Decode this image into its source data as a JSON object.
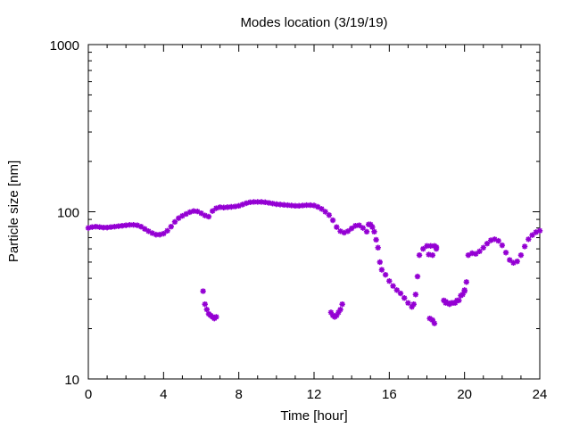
{
  "chart_data": {
    "type": "scatter",
    "title": "Modes location (3/19/19)",
    "xlabel": "Time [hour]",
    "ylabel": "Particle size [nm]",
    "xlim": [
      0,
      24
    ],
    "ylim": [
      10,
      1000
    ],
    "yscale": "log",
    "x_ticks": [
      0,
      4,
      8,
      12,
      16,
      20,
      24
    ],
    "y_ticks": [
      10,
      100,
      1000
    ],
    "grid": false,
    "legend": "none",
    "marker": "asterisk",
    "colors": {
      "series": "#9400d3",
      "axes": "#000000"
    },
    "series": [
      {
        "points": [
          [
            0.0,
            80
          ],
          [
            0.2,
            81
          ],
          [
            0.4,
            81.5
          ],
          [
            0.6,
            81
          ],
          [
            0.8,
            80.5
          ],
          [
            1.0,
            80.5
          ],
          [
            1.2,
            81
          ],
          [
            1.4,
            81.5
          ],
          [
            1.6,
            82
          ],
          [
            1.8,
            82.5
          ],
          [
            2.0,
            83
          ],
          [
            2.2,
            83.5
          ],
          [
            2.4,
            83.5
          ],
          [
            2.6,
            83
          ],
          [
            2.8,
            81.5
          ],
          [
            3.0,
            79
          ],
          [
            3.2,
            76.5
          ],
          [
            3.4,
            74.5
          ],
          [
            3.6,
            73
          ],
          [
            3.8,
            73
          ],
          [
            4.0,
            74
          ],
          [
            4.2,
            77
          ],
          [
            4.4,
            81.5
          ],
          [
            4.6,
            87
          ],
          [
            4.8,
            91.5
          ],
          [
            5.0,
            94.5
          ],
          [
            5.2,
            97
          ],
          [
            5.4,
            99.5
          ],
          [
            5.6,
            101
          ],
          [
            5.8,
            100.5
          ],
          [
            6.0,
            98
          ],
          [
            6.2,
            95
          ],
          [
            6.4,
            93.5
          ],
          [
            6.6,
            101
          ],
          [
            6.8,
            105
          ],
          [
            7.0,
            106.5
          ],
          [
            7.2,
            106
          ],
          [
            7.4,
            106.5
          ],
          [
            7.6,
            107
          ],
          [
            7.8,
            107.5
          ],
          [
            8.0,
            108.5
          ],
          [
            8.2,
            110.5
          ],
          [
            8.4,
            112.5
          ],
          [
            8.6,
            114
          ],
          [
            8.8,
            114.5
          ],
          [
            9.0,
            114.5
          ],
          [
            9.2,
            114.5
          ],
          [
            9.4,
            114
          ],
          [
            9.6,
            113
          ],
          [
            9.8,
            112
          ],
          [
            10.0,
            111
          ],
          [
            10.2,
            110.5
          ],
          [
            10.4,
            110
          ],
          [
            10.6,
            109.5
          ],
          [
            10.8,
            109
          ],
          [
            11.0,
            108.5
          ],
          [
            11.2,
            108.5
          ],
          [
            11.4,
            109
          ],
          [
            11.6,
            109.5
          ],
          [
            11.8,
            109.5
          ],
          [
            12.0,
            109
          ],
          [
            12.2,
            107
          ],
          [
            12.4,
            104
          ],
          [
            12.6,
            100
          ],
          [
            12.8,
            95.5
          ],
          [
            13.0,
            89
          ],
          [
            13.2,
            81
          ],
          [
            13.4,
            76.5
          ],
          [
            13.6,
            75
          ],
          [
            13.8,
            76.5
          ],
          [
            14.0,
            79.5
          ],
          [
            14.2,
            82.5
          ],
          [
            14.4,
            83
          ],
          [
            14.6,
            80
          ],
          [
            14.8,
            76
          ],
          [
            14.9,
            84
          ],
          [
            15.0,
            84
          ],
          [
            15.1,
            81
          ],
          [
            15.2,
            76
          ],
          [
            15.3,
            68
          ],
          [
            15.4,
            61
          ],
          [
            15.5,
            50
          ],
          [
            15.6,
            45
          ],
          [
            15.8,
            42
          ],
          [
            16.0,
            38.5
          ],
          [
            16.2,
            36
          ],
          [
            16.4,
            34
          ],
          [
            16.6,
            32.5
          ],
          [
            16.8,
            30.5
          ],
          [
            17.0,
            28.5
          ],
          [
            17.2,
            27
          ],
          [
            17.3,
            28
          ],
          [
            17.4,
            32
          ],
          [
            17.5,
            41
          ],
          [
            17.6,
            55
          ],
          [
            17.8,
            60
          ],
          [
            18.0,
            62.5
          ],
          [
            18.2,
            62.5
          ],
          [
            18.4,
            62.5
          ],
          [
            18.5,
            61.5
          ],
          [
            18.1,
            55.5
          ],
          [
            18.3,
            55
          ],
          [
            19.0,
            28.5
          ],
          [
            19.2,
            28
          ],
          [
            19.4,
            28.5
          ],
          [
            19.6,
            29.5
          ],
          [
            19.8,
            31.5
          ],
          [
            20.0,
            34
          ],
          [
            20.1,
            38
          ],
          [
            20.2,
            55
          ],
          [
            20.4,
            56.5
          ],
          [
            20.6,
            56
          ],
          [
            20.8,
            58
          ],
          [
            21.0,
            61
          ],
          [
            21.2,
            64.5
          ],
          [
            21.4,
            67.5
          ],
          [
            21.6,
            68.5
          ],
          [
            21.8,
            67
          ],
          [
            22.0,
            63
          ],
          [
            22.2,
            57
          ],
          [
            22.4,
            51.5
          ],
          [
            22.6,
            49.5
          ],
          [
            22.8,
            50.5
          ],
          [
            23.0,
            55
          ],
          [
            23.2,
            62
          ],
          [
            23.4,
            68.5
          ],
          [
            23.6,
            72.5
          ],
          [
            23.8,
            75.5
          ],
          [
            24.0,
            77
          ],
          [
            24.2,
            77
          ],
          [
            24.4,
            75
          ],
          [
            24.6,
            72
          ],
          [
            24.8,
            70.5
          ],
          [
            25.0,
            70
          ],
          [
            25.2,
            72
          ]
        ]
      },
      {
        "points": [
          [
            6.1,
            33.5
          ],
          [
            6.2,
            28
          ],
          [
            6.3,
            26
          ],
          [
            6.4,
            24.5
          ],
          [
            6.5,
            24
          ],
          [
            6.6,
            23.5
          ],
          [
            6.7,
            23
          ],
          [
            6.8,
            23.5
          ],
          [
            12.9,
            25
          ],
          [
            13.0,
            24
          ],
          [
            13.1,
            23.5
          ],
          [
            13.2,
            24
          ],
          [
            13.3,
            25
          ],
          [
            13.4,
            26
          ],
          [
            13.5,
            28
          ],
          [
            18.15,
            23
          ],
          [
            18.3,
            22.5
          ],
          [
            18.4,
            21.5
          ],
          [
            18.5,
            60
          ],
          [
            18.9,
            29.5
          ],
          [
            19.0,
            29
          ],
          [
            19.1,
            28.5
          ],
          [
            19.3,
            28.5
          ],
          [
            19.5,
            28.5
          ],
          [
            19.7,
            29.5
          ],
          [
            19.9,
            32
          ],
          [
            20.0,
            33.5
          ]
        ]
      }
    ]
  }
}
